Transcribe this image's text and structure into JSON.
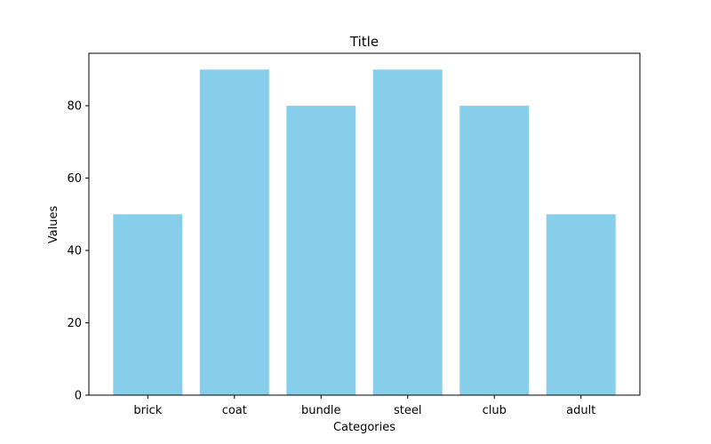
{
  "chart_data": {
    "type": "bar",
    "title": "Title",
    "xlabel": "Categories",
    "ylabel": "Values",
    "categories": [
      "brick",
      "coat",
      "bundle",
      "steel",
      "club",
      "adult"
    ],
    "values": [
      50,
      90,
      80,
      90,
      80,
      50
    ],
    "ylim": [
      0,
      94.5
    ],
    "yticks": [
      0,
      20,
      40,
      60,
      80
    ],
    "grid": false,
    "legend": "none"
  },
  "colors": {
    "bar": "#87ceeb",
    "axis": "#000000",
    "background": "#ffffff"
  }
}
